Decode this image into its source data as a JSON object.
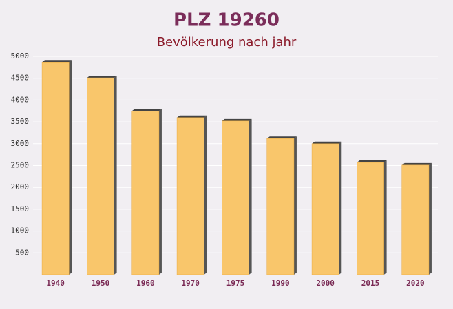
{
  "chart_data": {
    "type": "bar",
    "title": "PLZ 19260",
    "subtitle": "Bevölkerung nach jahr",
    "categories": [
      "1940",
      "1950",
      "1960",
      "1970",
      "1975",
      "1990",
      "2000",
      "2015",
      "2020"
    ],
    "values": [
      4870,
      4510,
      3750,
      3600,
      3520,
      3120,
      3000,
      2570,
      2510
    ],
    "color": "#f9c66b",
    "ylim": [
      0,
      5000
    ],
    "yticks": [
      500,
      1000,
      1500,
      2000,
      2500,
      3000,
      3500,
      4000,
      4500,
      5000
    ],
    "grid": true
  }
}
